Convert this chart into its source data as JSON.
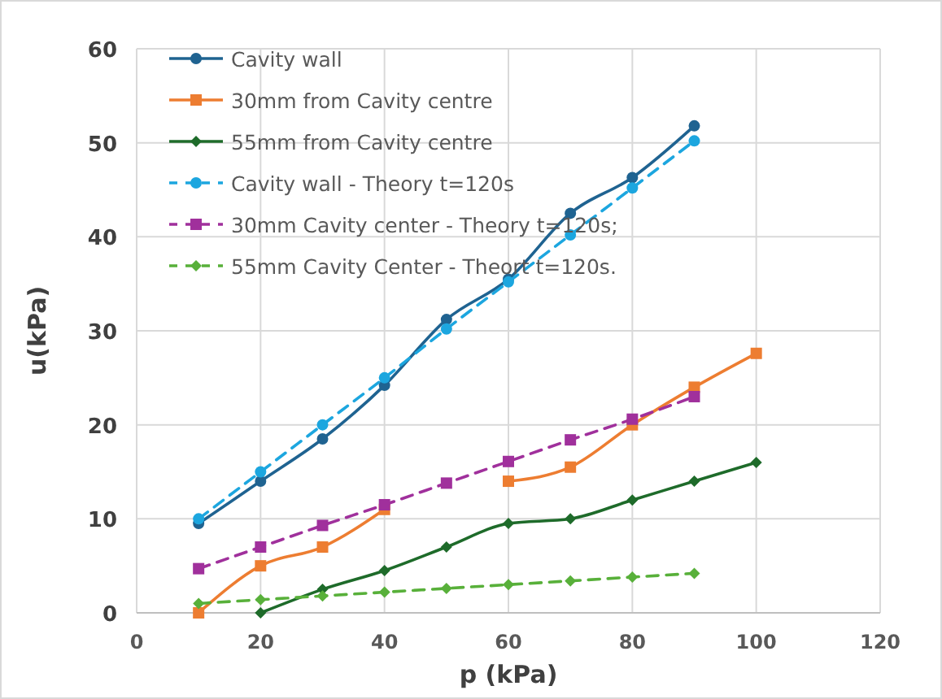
{
  "chart_data": {
    "type": "line",
    "xlabel": "p (kPa)",
    "ylabel": "u(kPa)",
    "x": [
      10,
      20,
      30,
      40,
      50,
      60,
      70,
      80,
      90,
      100
    ],
    "xlim": [
      0,
      120
    ],
    "xticks": [
      0,
      20,
      40,
      60,
      80,
      100,
      120
    ],
    "ylim": [
      0,
      60
    ],
    "yticks": [
      0,
      10,
      20,
      30,
      40,
      50,
      60
    ],
    "grid": true,
    "legend": "top left",
    "series": [
      {
        "name": "Cavity wall",
        "color": "#1f6391",
        "marker": "circle",
        "line_style": "solid",
        "values": [
          9.5,
          14,
          18.5,
          24.2,
          31.2,
          35.5,
          42.5,
          46.3,
          51.8,
          null
        ]
      },
      {
        "name": "30mm from Cavity centre",
        "color": "#ed7d31",
        "marker": "square",
        "line_style": "solid",
        "values": [
          0,
          5,
          7,
          11,
          null,
          14,
          15.5,
          20,
          24,
          27.6
        ]
      },
      {
        "name": "55mm from Cavity centre",
        "color": "#1e6b2a",
        "marker": "diamond",
        "line_style": "solid",
        "values": [
          null,
          0,
          2.5,
          4.5,
          7,
          9.5,
          10,
          12,
          14,
          16
        ]
      },
      {
        "name": "Cavity wall - Theory t=120s",
        "color": "#1ca6df",
        "marker": "circle",
        "line_style": "dashed",
        "values": [
          10,
          15,
          20,
          25,
          30.2,
          35.2,
          40.2,
          45.2,
          50.2,
          null
        ]
      },
      {
        "name": "30mm Cavity center - Theory t=120s;",
        "color": "#a0309c",
        "marker": "square",
        "line_style": "dashed",
        "values": [
          4.7,
          7,
          9.3,
          11.5,
          13.8,
          16.1,
          18.4,
          20.6,
          23,
          null
        ]
      },
      {
        "name": "55mm Cavity Center - Theort t=120s.",
        "color": "#58b03a",
        "marker": "diamond",
        "line_style": "dashed",
        "values": [
          1,
          1.4,
          1.8,
          2.2,
          2.6,
          3,
          3.4,
          3.8,
          4.2,
          null
        ]
      }
    ]
  }
}
